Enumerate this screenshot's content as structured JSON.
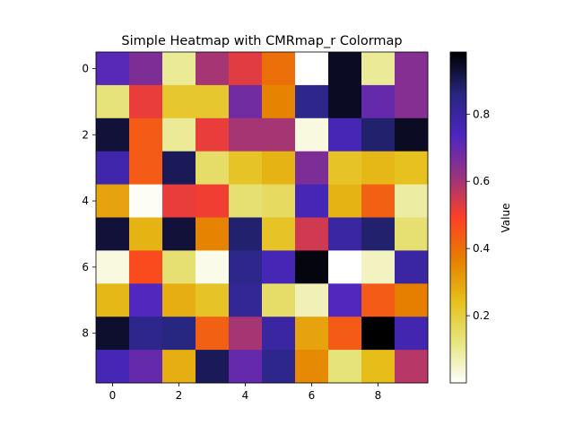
{
  "chart_data": {
    "type": "heatmap",
    "title": "Simple Heatmap with CMRmap_r Colormap",
    "colormap": "CMRmap_r",
    "xlabel": "",
    "ylabel": "",
    "colorbar_label": "Value",
    "x_ticks": [
      0,
      2,
      4,
      6,
      8
    ],
    "y_ticks": [
      0,
      2,
      4,
      6,
      8
    ],
    "colorbar_ticks": [
      0.2,
      0.4,
      0.6,
      0.8
    ],
    "colorbar_range": [
      0.0,
      0.985
    ],
    "values": [
      [
        0.72,
        0.66,
        0.1,
        0.6,
        0.53,
        0.4,
        0.0,
        0.95,
        0.1,
        0.65
      ],
      [
        0.13,
        0.52,
        0.22,
        0.22,
        0.68,
        0.36,
        0.84,
        0.95,
        0.7,
        0.65
      ],
      [
        0.93,
        0.44,
        0.1,
        0.52,
        0.6,
        0.6,
        0.03,
        0.76,
        0.88,
        0.95
      ],
      [
        0.78,
        0.44,
        0.9,
        0.15,
        0.23,
        0.27,
        0.66,
        0.23,
        0.26,
        0.24
      ],
      [
        0.3,
        0.01,
        0.52,
        0.51,
        0.14,
        0.16,
        0.76,
        0.27,
        0.43,
        0.09
      ],
      [
        0.93,
        0.27,
        0.93,
        0.36,
        0.88,
        0.23,
        0.55,
        0.8,
        0.88,
        0.14
      ],
      [
        0.03,
        0.47,
        0.14,
        0.02,
        0.84,
        0.76,
        0.97,
        0.0,
        0.06,
        0.8
      ],
      [
        0.26,
        0.73,
        0.28,
        0.23,
        0.82,
        0.15,
        0.07,
        0.73,
        0.44,
        0.37
      ],
      [
        0.94,
        0.84,
        0.86,
        0.43,
        0.6,
        0.8,
        0.3,
        0.44,
        0.99,
        0.77
      ],
      [
        0.76,
        0.7,
        0.28,
        0.9,
        0.7,
        0.84,
        0.35,
        0.13,
        0.25,
        0.58
      ]
    ]
  }
}
